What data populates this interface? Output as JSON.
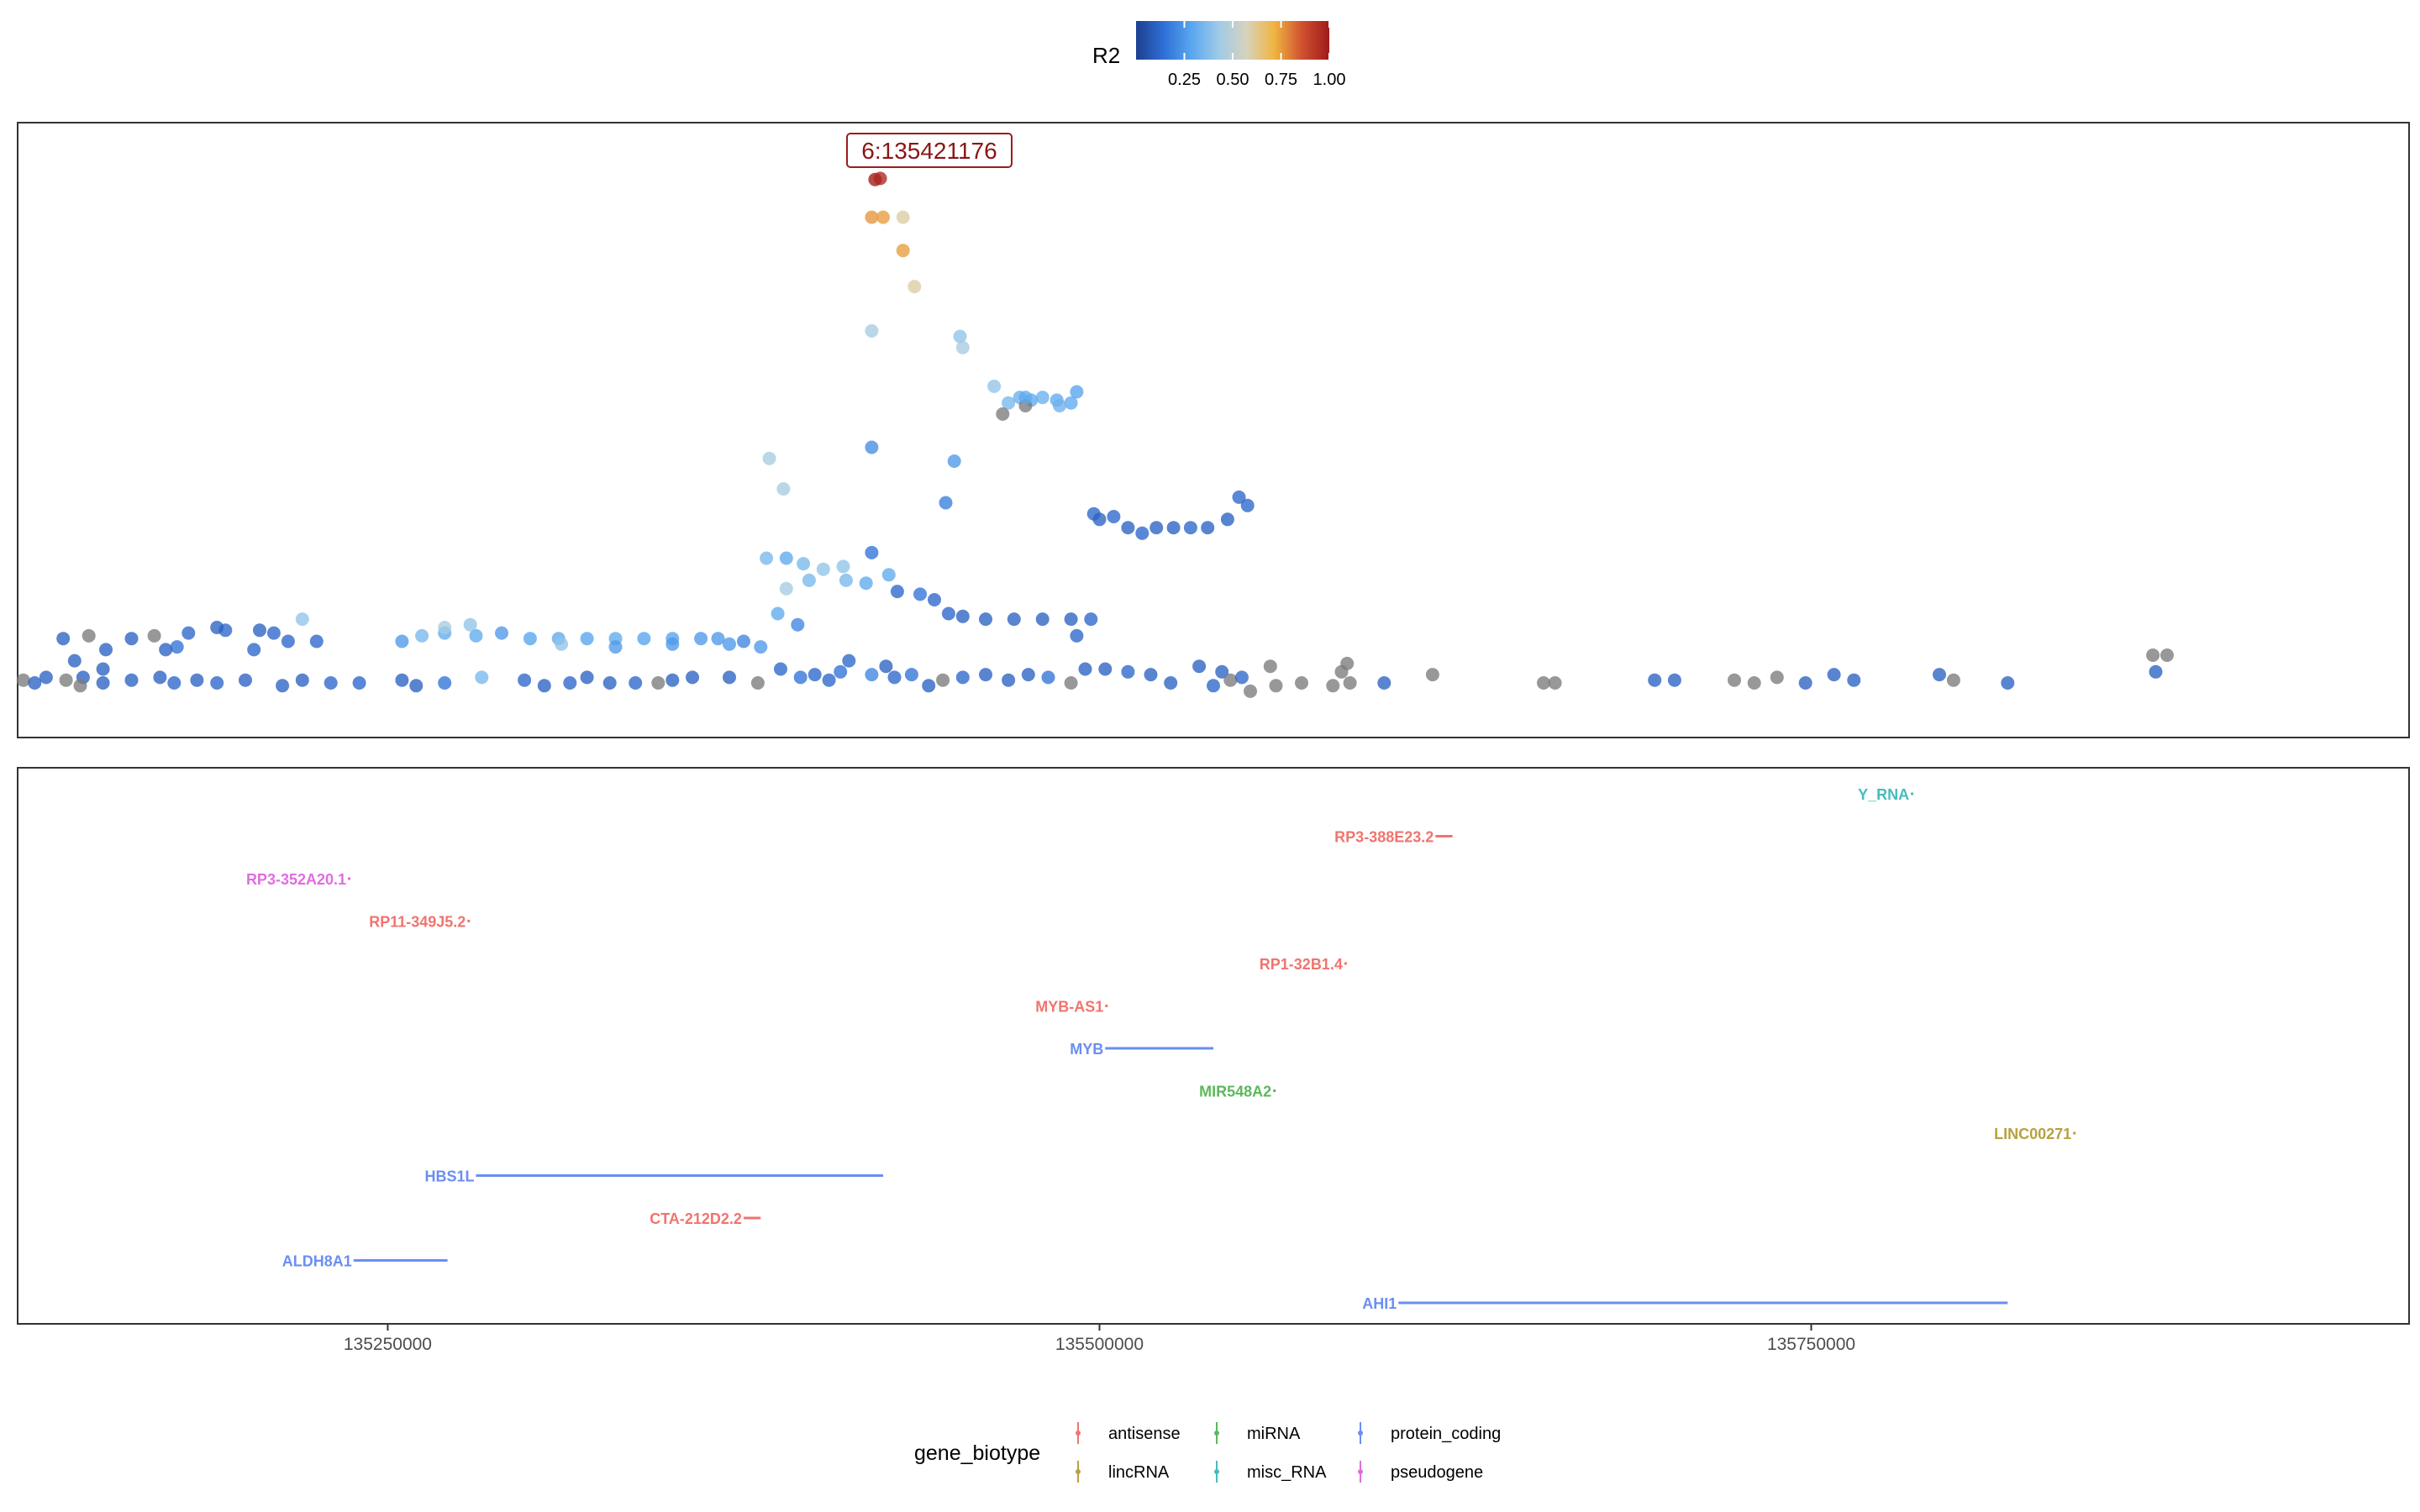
{
  "chart_data": [
    {
      "type": "scatter",
      "name": "locus",
      "colorbar": {
        "title": "R2",
        "ticks": [
          "0.25",
          "0.50",
          "0.75",
          "1.00"
        ],
        "tick_values": [
          0.25,
          0.5,
          0.75,
          1.0
        ],
        "range": [
          0,
          1
        ],
        "stops": [
          "#1d3f8f",
          "#2f6fd6",
          "#58a6ef",
          "#9fcbe8",
          "#d7d2bd",
          "#f0b542",
          "#d05230",
          "#a01a1a"
        ]
      },
      "lead_label": "6:135421176",
      "lead_color": "#b41e1e",
      "na_color": "#7b7b7b",
      "x_range": [
        135120000,
        135960000
      ],
      "y_range": [
        0,
        1
      ],
      "points": [
        [
          135421176,
          0.958,
          1.0
        ],
        [
          135423000,
          0.96,
          0.97
        ],
        [
          135420000,
          0.89,
          0.76
        ],
        [
          135424000,
          0.89,
          0.75
        ],
        [
          135431000,
          0.89,
          0.6
        ],
        [
          135431000,
          0.83,
          0.75
        ],
        [
          135435000,
          0.765,
          0.6
        ],
        [
          135420000,
          0.685,
          0.45
        ],
        [
          135451000,
          0.675,
          0.4
        ],
        [
          135452000,
          0.655,
          0.45
        ],
        [
          135384000,
          0.455,
          0.45
        ],
        [
          135389000,
          0.4,
          0.45
        ],
        [
          135420000,
          0.475,
          0.22
        ],
        [
          135449000,
          0.45,
          0.25
        ],
        [
          135446000,
          0.375,
          0.18
        ],
        [
          135463000,
          0.585,
          0.4
        ],
        [
          135468000,
          0.555,
          0.35
        ],
        [
          135472000,
          0.565,
          0.32
        ],
        [
          135476000,
          0.56,
          0.3
        ],
        [
          135480000,
          0.565,
          0.32
        ],
        [
          135485000,
          0.56,
          0.3
        ],
        [
          135490000,
          0.555,
          0.3
        ],
        [
          135486000,
          0.55,
          0.33
        ],
        [
          135474000,
          0.55,
          null
        ],
        [
          135466000,
          0.535,
          null
        ],
        [
          135474000,
          0.565,
          0.3
        ],
        [
          135492000,
          0.575,
          0.28
        ],
        [
          135498000,
          0.355,
          0.12
        ],
        [
          135500000,
          0.345,
          0.1
        ],
        [
          135505000,
          0.35,
          0.12
        ],
        [
          135510000,
          0.33,
          0.1
        ],
        [
          135515000,
          0.32,
          0.12
        ],
        [
          135520000,
          0.33,
          0.1
        ],
        [
          135526000,
          0.33,
          0.1
        ],
        [
          135532000,
          0.33,
          0.12
        ],
        [
          135538000,
          0.33,
          0.1
        ],
        [
          135545000,
          0.345,
          0.1
        ],
        [
          135549000,
          0.385,
          0.12
        ],
        [
          135552000,
          0.37,
          0.12
        ],
        [
          135383000,
          0.275,
          0.35
        ],
        [
          135390000,
          0.275,
          0.3
        ],
        [
          135396000,
          0.265,
          0.35
        ],
        [
          135403000,
          0.255,
          0.4
        ],
        [
          135410000,
          0.26,
          0.4
        ],
        [
          135420000,
          0.285,
          0.15
        ],
        [
          135426000,
          0.245,
          0.3
        ],
        [
          135418000,
          0.23,
          0.3
        ],
        [
          135390000,
          0.22,
          0.45
        ],
        [
          135398000,
          0.235,
          0.35
        ],
        [
          135411000,
          0.235,
          0.35
        ],
        [
          135429000,
          0.215,
          0.12
        ],
        [
          135437000,
          0.21,
          0.15
        ],
        [
          135442000,
          0.2,
          0.12
        ],
        [
          135447000,
          0.175,
          0.12
        ],
        [
          135452000,
          0.17,
          0.1
        ],
        [
          135460000,
          0.165,
          0.1
        ],
        [
          135470000,
          0.165,
          0.1
        ],
        [
          135480000,
          0.165,
          0.1
        ],
        [
          135490000,
          0.165,
          0.1
        ],
        [
          135497000,
          0.165,
          0.12
        ],
        [
          135492000,
          0.135,
          0.12
        ],
        [
          135387000,
          0.175,
          0.3
        ],
        [
          135394000,
          0.155,
          0.2
        ],
        [
          135375000,
          0.125,
          0.2
        ],
        [
          135366000,
          0.13,
          0.25
        ],
        [
          135360000,
          0.13,
          0.25
        ],
        [
          135350000,
          0.13,
          0.28
        ],
        [
          135340000,
          0.13,
          0.28
        ],
        [
          135330000,
          0.13,
          0.3
        ],
        [
          135320000,
          0.13,
          0.28
        ],
        [
          135310000,
          0.13,
          0.3
        ],
        [
          135300000,
          0.13,
          0.28
        ],
        [
          135290000,
          0.14,
          0.25
        ],
        [
          135281000,
          0.135,
          0.3
        ],
        [
          135270000,
          0.14,
          0.3
        ],
        [
          135262000,
          0.135,
          0.35
        ],
        [
          135255000,
          0.125,
          0.25
        ],
        [
          135270000,
          0.15,
          0.45
        ],
        [
          135279000,
          0.155,
          0.4
        ],
        [
          135311000,
          0.12,
          0.4
        ],
        [
          135330000,
          0.115,
          0.25
        ],
        [
          135350000,
          0.12,
          0.25
        ],
        [
          135370000,
          0.12,
          0.25
        ],
        [
          135381000,
          0.115,
          0.25
        ],
        [
          135220000,
          0.165,
          0.4
        ],
        [
          135193000,
          0.145,
          0.12
        ],
        [
          135190000,
          0.15,
          0.1
        ],
        [
          135180000,
          0.14,
          0.12
        ],
        [
          135168000,
          0.135,
          null
        ],
        [
          135160000,
          0.13,
          0.1
        ],
        [
          135151000,
          0.11,
          0.1
        ],
        [
          135136000,
          0.13,
          0.1
        ],
        [
          135145000,
          0.135,
          null
        ],
        [
          135205000,
          0.145,
          0.1
        ],
        [
          135210000,
          0.14,
          0.12
        ],
        [
          135225000,
          0.125,
          0.12
        ],
        [
          135215000,
          0.125,
          0.12
        ],
        [
          135176000,
          0.115,
          0.15
        ],
        [
          135172000,
          0.11,
          0.1
        ],
        [
          135140000,
          0.09,
          0.1
        ],
        [
          135143000,
          0.06,
          0.1
        ],
        [
          135150000,
          0.075,
          0.1
        ],
        [
          135203000,
          0.11,
          0.12
        ],
        [
          135130000,
          0.06,
          0.1
        ],
        [
          135122000,
          0.055,
          null
        ],
        [
          135126000,
          0.05,
          0.1
        ],
        [
          135137000,
          0.055,
          null
        ],
        [
          135142000,
          0.045,
          null
        ],
        [
          135150000,
          0.05,
          0.1
        ],
        [
          135160000,
          0.055,
          0.1
        ],
        [
          135170000,
          0.06,
          0.1
        ],
        [
          135175000,
          0.05,
          0.12
        ],
        [
          135183000,
          0.055,
          0.1
        ],
        [
          135190000,
          0.05,
          0.12
        ],
        [
          135200000,
          0.055,
          0.1
        ],
        [
          135213000,
          0.045,
          0.1
        ],
        [
          135220000,
          0.055,
          0.1
        ],
        [
          135230000,
          0.05,
          0.12
        ],
        [
          135240000,
          0.05,
          0.12
        ],
        [
          135255000,
          0.055,
          0.1
        ],
        [
          135260000,
          0.045,
          0.1
        ],
        [
          135270000,
          0.05,
          0.15
        ],
        [
          135283000,
          0.06,
          0.35
        ],
        [
          135298000,
          0.055,
          0.12
        ],
        [
          135305000,
          0.045,
          0.1
        ],
        [
          135314000,
          0.05,
          0.12
        ],
        [
          135320000,
          0.06,
          0.1
        ],
        [
          135328000,
          0.05,
          0.1
        ],
        [
          135337000,
          0.05,
          0.12
        ],
        [
          135345000,
          0.05,
          null
        ],
        [
          135350000,
          0.055,
          0.1
        ],
        [
          135357000,
          0.06,
          0.1
        ],
        [
          135370000,
          0.06,
          0.1
        ],
        [
          135380000,
          0.05,
          null
        ],
        [
          135388000,
          0.075,
          0.12
        ],
        [
          135395000,
          0.06,
          0.15
        ],
        [
          135400000,
          0.065,
          0.12
        ],
        [
          135405000,
          0.055,
          0.12
        ],
        [
          135409000,
          0.07,
          0.15
        ],
        [
          135412000,
          0.09,
          0.12
        ],
        [
          135420000,
          0.065,
          0.2
        ],
        [
          135425000,
          0.08,
          0.1
        ],
        [
          135428000,
          0.06,
          0.12
        ],
        [
          135434000,
          0.065,
          0.15
        ],
        [
          135440000,
          0.045,
          0.1
        ],
        [
          135445000,
          0.055,
          null
        ],
        [
          135452000,
          0.06,
          0.12
        ],
        [
          135460000,
          0.065,
          0.1
        ],
        [
          135468000,
          0.055,
          0.1
        ],
        [
          135475000,
          0.065,
          0.1
        ],
        [
          135482000,
          0.06,
          0.15
        ],
        [
          135490000,
          0.05,
          null
        ],
        [
          135495000,
          0.075,
          0.1
        ],
        [
          135502000,
          0.075,
          0.1
        ],
        [
          135510000,
          0.07,
          0.12
        ],
        [
          135518000,
          0.065,
          0.1
        ],
        [
          135525000,
          0.05,
          0.1
        ],
        [
          135535000,
          0.08,
          0.1
        ],
        [
          135543000,
          0.07,
          0.1
        ],
        [
          135546000,
          0.055,
          null
        ],
        [
          135550000,
          0.06,
          0.12
        ],
        [
          135540000,
          0.045,
          0.12
        ],
        [
          135553000,
          0.035,
          null
        ],
        [
          135560000,
          0.08,
          null
        ],
        [
          135562000,
          0.045,
          null
        ],
        [
          135571000,
          0.05,
          null
        ],
        [
          135582000,
          0.045,
          null
        ],
        [
          135585000,
          0.07,
          null
        ],
        [
          135588000,
          0.05,
          null
        ],
        [
          135587000,
          0.085,
          null
        ],
        [
          135600000,
          0.05,
          0.1
        ],
        [
          135617000,
          0.065,
          null
        ],
        [
          135656000,
          0.05,
          null
        ],
        [
          135660000,
          0.05,
          null
        ],
        [
          135695000,
          0.055,
          0.1
        ],
        [
          135702000,
          0.055,
          0.1
        ],
        [
          135723000,
          0.055,
          null
        ],
        [
          135730000,
          0.05,
          null
        ],
        [
          135738000,
          0.06,
          null
        ],
        [
          135748000,
          0.05,
          0.1
        ],
        [
          135758000,
          0.065,
          0.1
        ],
        [
          135765000,
          0.055,
          0.1
        ],
        [
          135795000,
          0.065,
          0.1
        ],
        [
          135800000,
          0.055,
          null
        ],
        [
          135819000,
          0.05,
          0.1
        ],
        [
          135870000,
          0.1,
          null
        ],
        [
          135875000,
          0.1,
          null
        ],
        [
          135871000,
          0.07,
          0.1
        ]
      ]
    },
    {
      "type": "gene-track",
      "name": "genes",
      "x_range": [
        135120000,
        135960000
      ],
      "x_ticks": [
        135250000,
        135500000,
        135750000
      ],
      "x_tick_labels": [
        "135250000",
        "135500000",
        "135750000"
      ],
      "genes": [
        {
          "name": "Y_RNA",
          "biotype": "misc_RNA",
          "start": 135785000,
          "end": 135785400,
          "row": 0
        },
        {
          "name": "RP3-388E23.2",
          "biotype": "antisense",
          "start": 135618000,
          "end": 135624000,
          "row": 1
        },
        {
          "name": "RP3-352A20.1",
          "biotype": "pseudogene",
          "start": 135236000,
          "end": 135236800,
          "row": 2
        },
        {
          "name": "RP11-349J5.2",
          "biotype": "antisense",
          "start": 135278000,
          "end": 135278800,
          "row": 3
        },
        {
          "name": "RP1-32B1.4",
          "biotype": "antisense",
          "start": 135586000,
          "end": 135586800,
          "row": 4
        },
        {
          "name": "MYB-AS1",
          "biotype": "antisense",
          "start": 135502000,
          "end": 135502800,
          "row": 5
        },
        {
          "name": "MYB",
          "biotype": "protein_coding",
          "start": 135502000,
          "end": 135540000,
          "row": 6
        },
        {
          "name": "MIR548A2",
          "biotype": "miRNA",
          "start": 135561000,
          "end": 135561100,
          "row": 7
        },
        {
          "name": "LINC00271",
          "biotype": "lincRNA",
          "start": 135842000,
          "end": 135842400,
          "row": 8
        },
        {
          "name": "HBS1L",
          "biotype": "protein_coding",
          "start": 135281000,
          "end": 135424000,
          "row": 9
        },
        {
          "name": "CTA-212D2.2",
          "biotype": "antisense",
          "start": 135375000,
          "end": 135381000,
          "row": 10
        },
        {
          "name": "ALDH8A1",
          "biotype": "protein_coding",
          "start": 135238000,
          "end": 135271000,
          "row": 11
        },
        {
          "name": "AHI1",
          "biotype": "protein_coding",
          "start": 135605000,
          "end": 135819000,
          "row": 12
        }
      ]
    }
  ],
  "legend": {
    "title": "gene_biotype",
    "items": [
      {
        "label": "antisense",
        "color": "#f0746e"
      },
      {
        "label": "lincRNA",
        "color": "#b8a140"
      },
      {
        "label": "miRNA",
        "color": "#5cb85c"
      },
      {
        "label": "misc_RNA",
        "color": "#45bcbc"
      },
      {
        "label": "protein_coding",
        "color": "#6a8ef2"
      },
      {
        "label": "pseudogene",
        "color": "#df6ee0"
      }
    ]
  },
  "colors": {
    "antisense": "#f0746e",
    "lincRNA": "#b8a140",
    "miRNA": "#5cb85c",
    "misc_RNA": "#45bcbc",
    "protein_coding": "#6a8ef2",
    "pseudogene": "#df6ee0",
    "panel_border": "#333333"
  }
}
